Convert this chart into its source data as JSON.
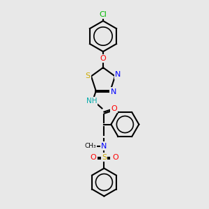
{
  "background_color": "#e8e8e8",
  "title": "",
  "atoms": {
    "Cl": {
      "color": "#00cc00",
      "symbol": "Cl"
    },
    "O": {
      "color": "#ff0000",
      "symbol": "O"
    },
    "N": {
      "color": "#0000ff",
      "symbol": "N"
    },
    "S": {
      "color": "#ccaa00",
      "symbol": "S"
    },
    "H": {
      "color": "#00aaaa",
      "symbol": "H"
    },
    "C": {
      "color": "#000000",
      "symbol": ""
    }
  },
  "bond_color": "#000000",
  "bond_width": 1.5,
  "figsize": [
    3.0,
    3.0
  ],
  "dpi": 100
}
